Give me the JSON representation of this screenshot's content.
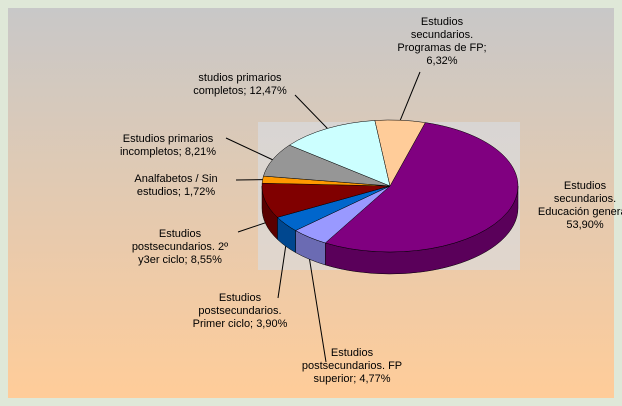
{
  "chart_data": {
    "type": "pie",
    "categories": [
      "Estudios secundarios. Educación general;",
      "Estudios postsecundarios. FP superior;",
      "Estudios postsecundarios. Primer ciclo;",
      "Estudios postsecundarios. 2º y3er ciclo;",
      "Analfabetos / Sin estudios;",
      "Estudios primarios incompletos;",
      "studios primarios completos;",
      "Estudios secundarios. Programas de FP;"
    ],
    "values": [
      53.9,
      4.77,
      3.9,
      8.55,
      1.72,
      8.21,
      12.47,
      6.32
    ],
    "value_labels": [
      "53,90%",
      "4,77%",
      "3,90%",
      "8,55%",
      "1,72%",
      "8,21%",
      "12,47%",
      "6,32%"
    ],
    "colors": [
      "#800080",
      "#9999ff",
      "#0066cc",
      "#800000",
      "#ff9900",
      "#969696",
      "#ccffff",
      "#ffcc99"
    ]
  }
}
